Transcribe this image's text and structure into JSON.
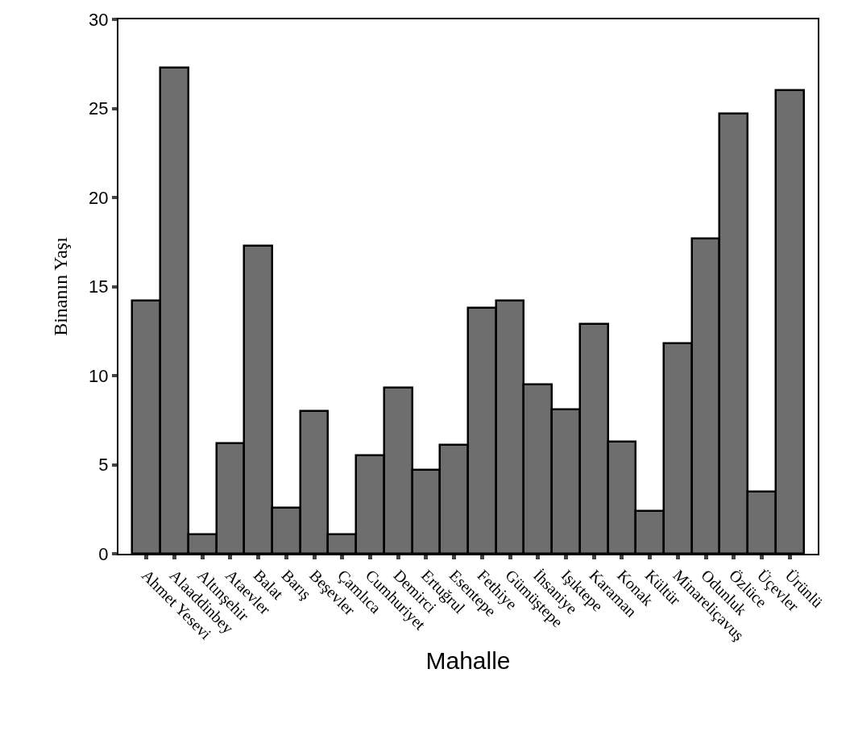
{
  "chart_data": {
    "type": "bar",
    "xlabel": "Mahalle",
    "ylabel": "Binanın Yaşı",
    "categories": [
      "Ahmet Yesevi",
      "Alaaddinbey",
      "Altınşehir",
      "Ataevler",
      "Balat",
      "Barış",
      "Beşevler",
      "Çamlıca",
      "Cumhuriyet",
      "Demirci",
      "Ertuğrul",
      "Esentepe",
      "Fethiye",
      "Gümüştepe",
      "İhsaniye",
      "Işıktepe",
      "Karaman",
      "Konak",
      "Kültür",
      "Minareliçavuş",
      "Odunluk",
      "Özlüce",
      "Üçevler",
      "Ürünlü"
    ],
    "values": [
      14.2,
      27.3,
      1.1,
      6.2,
      17.3,
      2.6,
      8.0,
      1.1,
      5.5,
      9.3,
      4.7,
      6.1,
      13.8,
      14.2,
      9.5,
      8.1,
      12.9,
      6.3,
      2.4,
      11.8,
      17.7,
      24.7,
      3.5,
      26.0
    ],
    "color": "#6e6e6e",
    "ylim": [
      0,
      30
    ],
    "yticks": [
      0,
      5,
      10,
      15,
      20,
      25,
      30
    ]
  }
}
